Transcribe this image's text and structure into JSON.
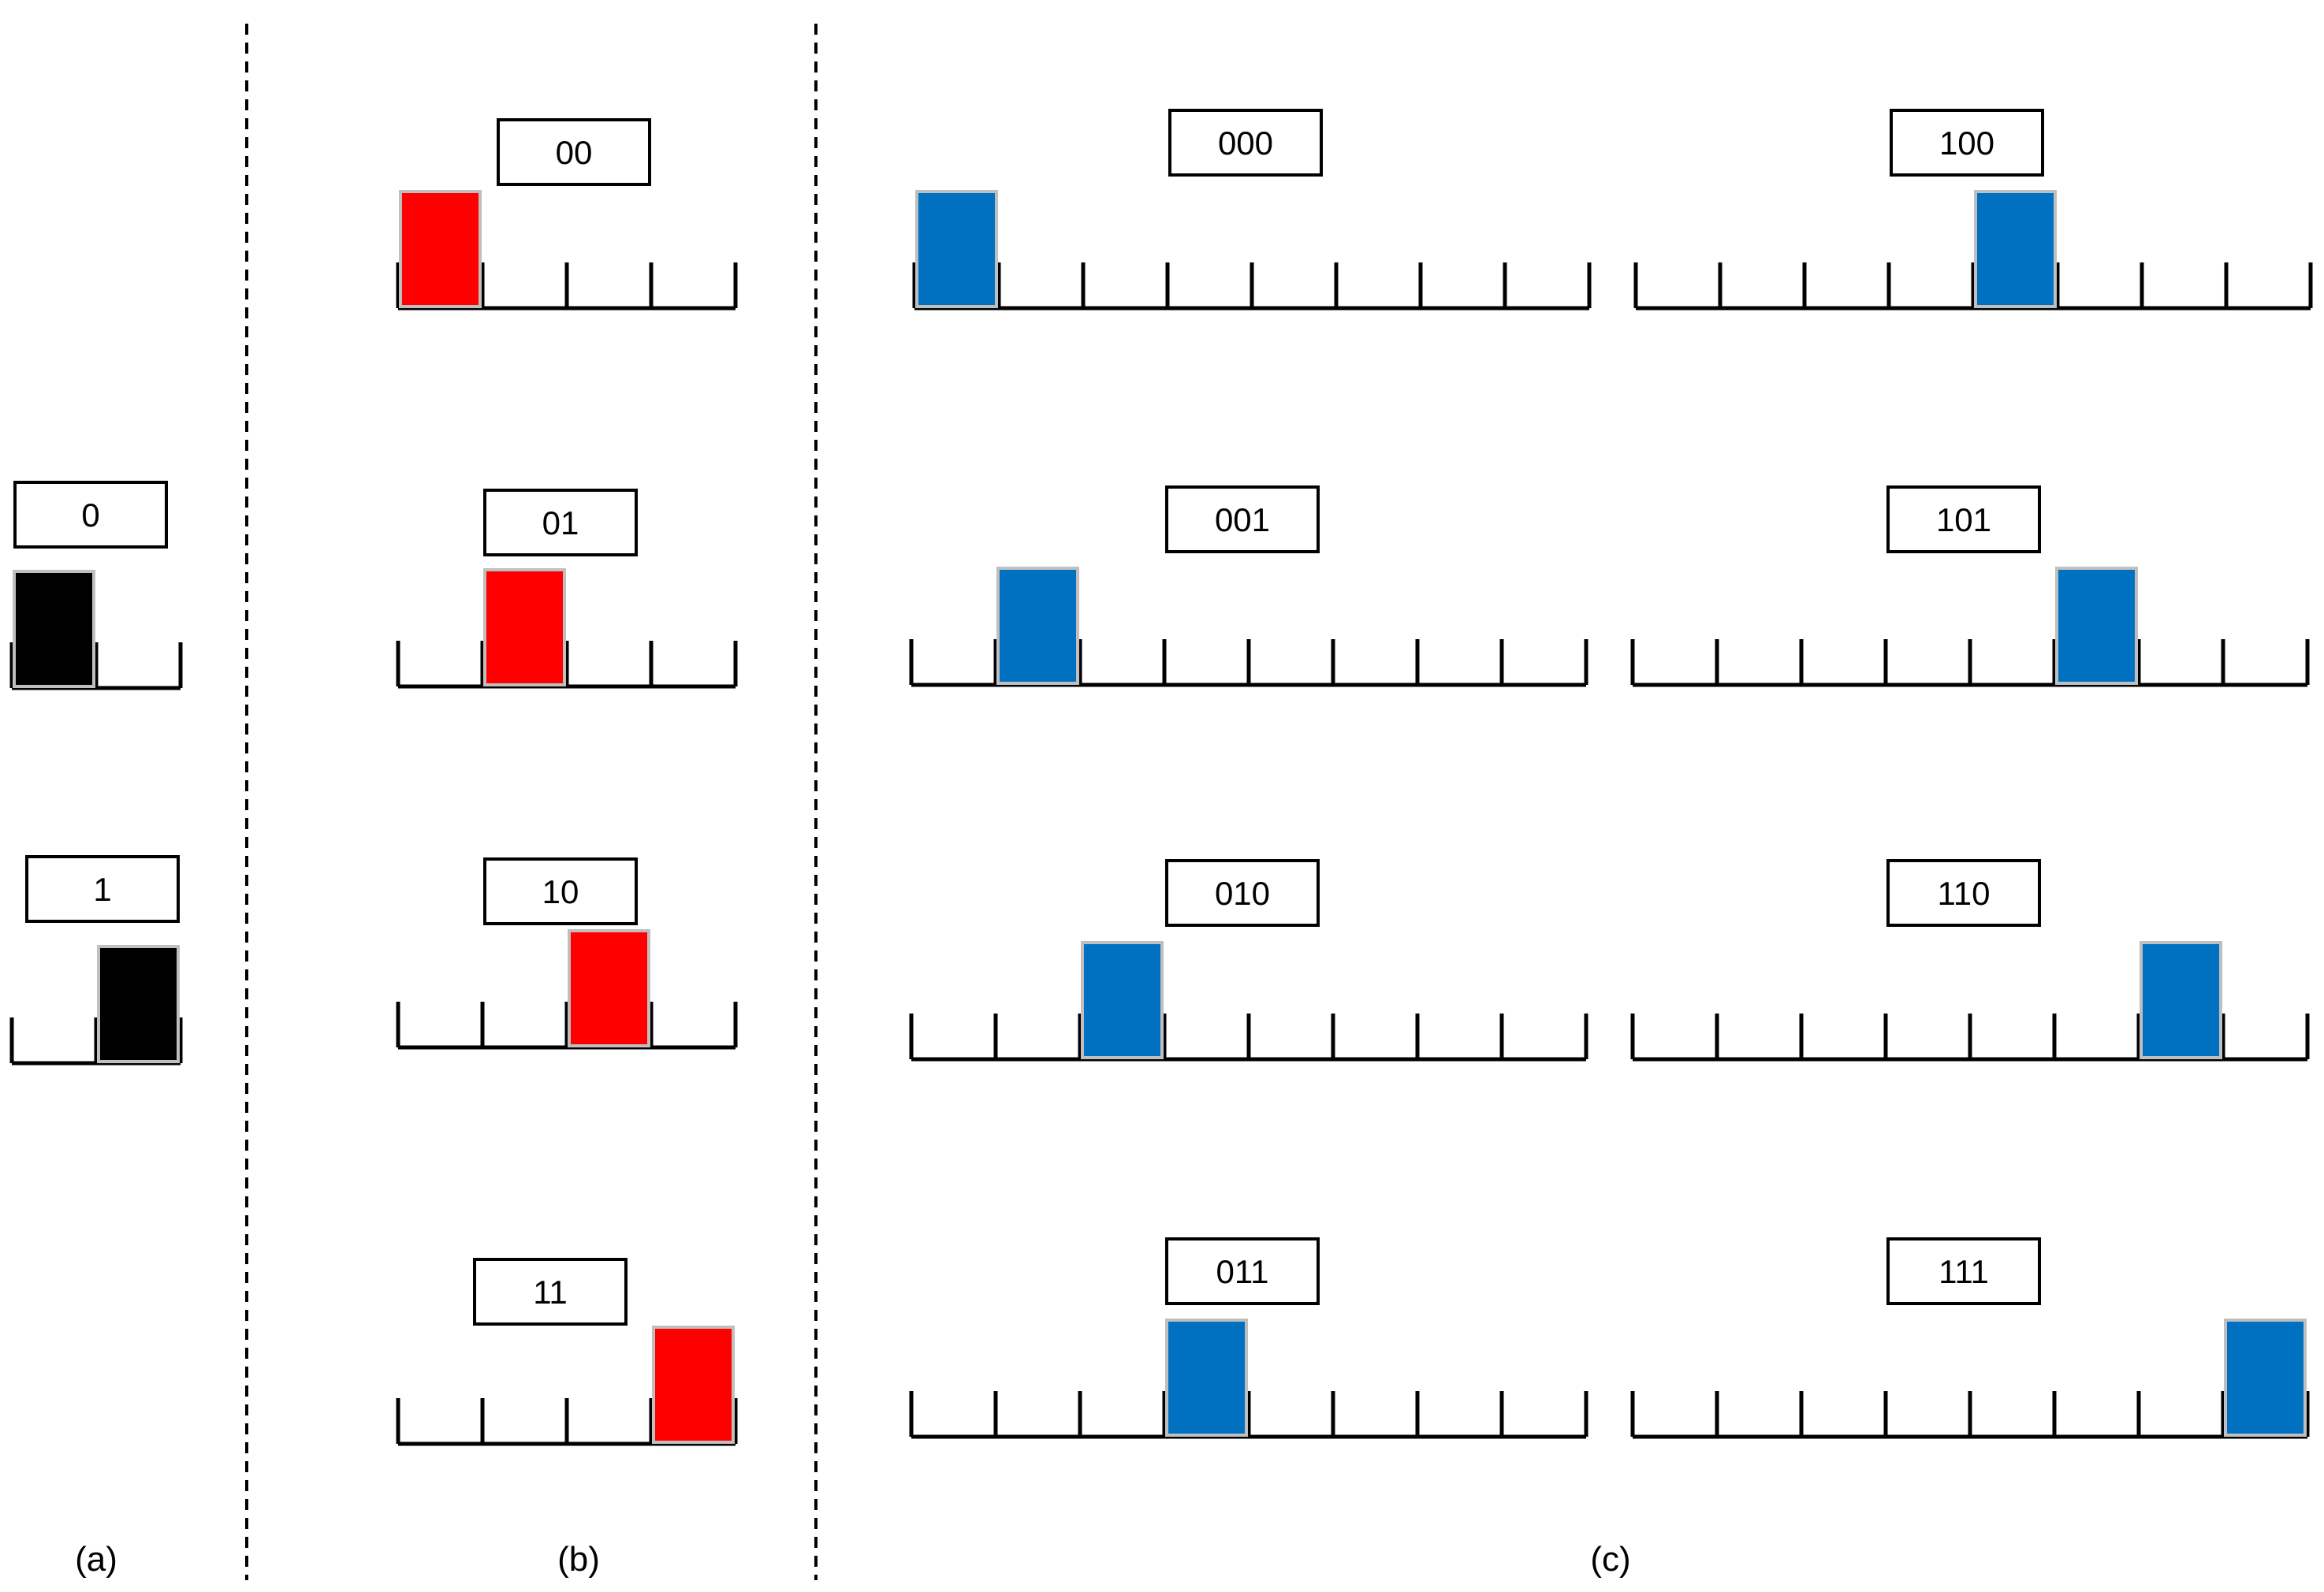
{
  "colors": {
    "panel_a_block": "#000000",
    "panel_b_block": "#ff0000",
    "panel_c_block": "#0070c0",
    "line": "#000000",
    "divider": "#000000"
  },
  "panels": {
    "a": {
      "caption": "(a)",
      "slots": 2,
      "encodings": [
        {
          "label": "0",
          "position": 0
        },
        {
          "label": "1",
          "position": 1
        }
      ]
    },
    "b": {
      "caption": "(b)",
      "slots": 4,
      "encodings": [
        {
          "label": "00",
          "position": 0
        },
        {
          "label": "01",
          "position": 1
        },
        {
          "label": "10",
          "position": 2
        },
        {
          "label": "11",
          "position": 3
        }
      ]
    },
    "c": {
      "caption": "(c)",
      "slots": 8,
      "encodings": [
        {
          "label": "000",
          "position": 0
        },
        {
          "label": "001",
          "position": 1
        },
        {
          "label": "010",
          "position": 2
        },
        {
          "label": "011",
          "position": 3
        },
        {
          "label": "100",
          "position": 4
        },
        {
          "label": "101",
          "position": 5
        },
        {
          "label": "110",
          "position": 6
        },
        {
          "label": "111",
          "position": 7
        }
      ]
    }
  }
}
